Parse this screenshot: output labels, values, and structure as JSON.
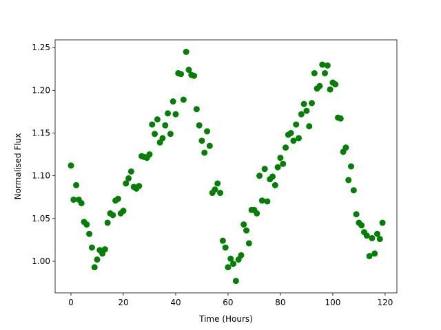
{
  "chart_data": {
    "type": "scatter",
    "xlabel": "Time (Hours)",
    "ylabel": "Normalised Flux",
    "x": [
      0,
      1,
      2,
      3,
      4,
      5,
      6,
      7,
      8,
      9,
      10,
      11,
      12,
      13,
      14,
      15,
      16,
      17,
      18,
      19,
      20,
      21,
      22,
      23,
      24,
      25,
      26,
      27,
      28,
      29,
      30,
      31,
      32,
      33,
      34,
      35,
      36,
      37,
      38,
      39,
      40,
      41,
      42,
      43,
      44,
      45,
      46,
      47,
      48,
      49,
      50,
      51,
      52,
      53,
      54,
      55,
      56,
      57,
      58,
      59,
      60,
      61,
      62,
      63,
      64,
      65,
      66,
      67,
      68,
      69,
      70,
      71,
      72,
      73,
      74,
      75,
      76,
      77,
      78,
      79,
      80,
      81,
      82,
      83,
      84,
      85,
      86,
      87,
      88,
      89,
      90,
      91,
      92,
      93,
      94,
      95,
      96,
      97,
      98,
      99,
      100,
      101,
      102,
      103,
      104,
      105,
      106,
      107,
      108,
      109,
      110,
      111,
      112,
      113,
      114,
      115,
      116,
      117,
      118,
      119
    ],
    "values": [
      1.112,
      1.072,
      1.089,
      1.072,
      1.068,
      1.046,
      1.043,
      1.032,
      1.016,
      0.993,
      1.002,
      1.013,
      1.009,
      1.014,
      1.045,
      1.056,
      1.054,
      1.071,
      1.073,
      1.056,
      1.059,
      1.091,
      1.097,
      1.105,
      1.087,
      1.085,
      1.088,
      1.123,
      1.122,
      1.121,
      1.125,
      1.16,
      1.149,
      1.166,
      1.139,
      1.144,
      1.159,
      1.173,
      1.149,
      1.187,
      1.172,
      1.22,
      1.219,
      1.189,
      1.245,
      1.224,
      1.218,
      1.217,
      1.178,
      1.159,
      1.141,
      1.127,
      1.152,
      1.135,
      1.08,
      1.084,
      1.091,
      1.08,
      1.024,
      1.016,
      0.993,
      1.003,
      0.997,
      0.977,
      1.002,
      1.007,
      1.043,
      1.036,
      1.021,
      1.06,
      1.06,
      1.056,
      1.1,
      1.071,
      1.108,
      1.07,
      1.096,
      1.099,
      1.089,
      1.11,
      1.121,
      1.114,
      1.133,
      1.148,
      1.15,
      1.141,
      1.16,
      1.144,
      1.172,
      1.184,
      1.176,
      1.158,
      1.185,
      1.22,
      1.202,
      1.205,
      1.23,
      1.22,
      1.229,
      1.201,
      1.209,
      1.207,
      1.168,
      1.167,
      1.128,
      1.133,
      1.095,
      1.111,
      1.083,
      1.055,
      1.045,
      1.042,
      1.034,
      1.03,
      1.006,
      1.027,
      1.009,
      1.032,
      1.026,
      1.045
    ],
    "color": "#008000",
    "xlim": [
      -6.05,
      124.5
    ],
    "xticks": [
      0,
      20,
      40,
      60,
      80,
      100,
      120
    ],
    "ylim": [
      0.963,
      1.259
    ],
    "yticks": [
      {
        "value": 1,
        "label": "1.00"
      },
      1.05,
      {
        "value": 1.1,
        "label": "1.10"
      },
      1.15,
      {
        "value": 1.2,
        "label": "1.20"
      },
      1.25
    ],
    "grid": false
  }
}
